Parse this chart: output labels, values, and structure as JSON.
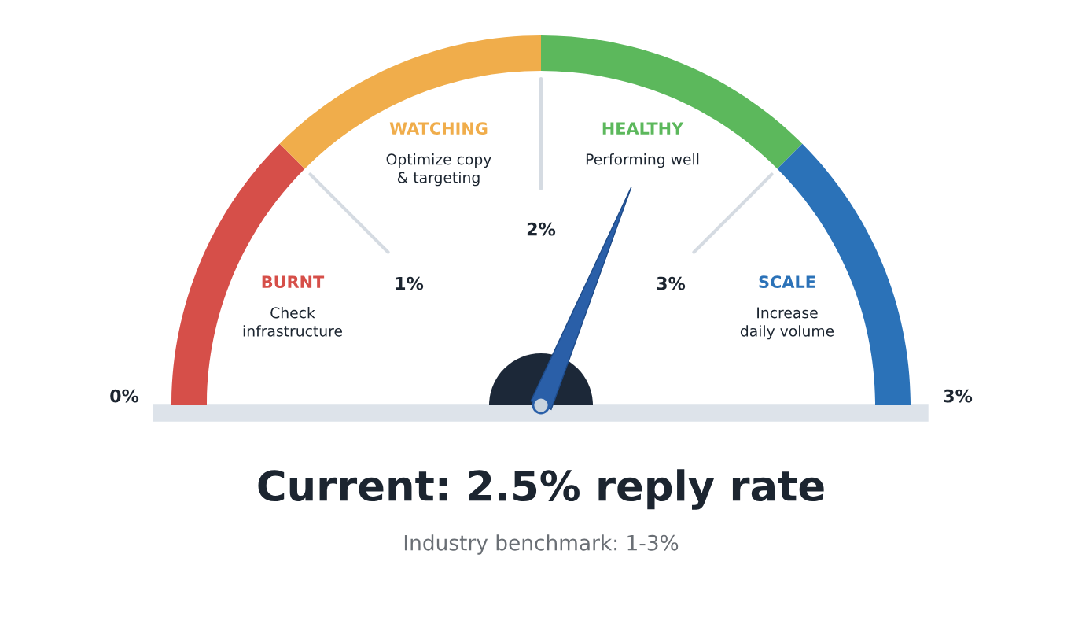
{
  "chart_data": {
    "type": "donut",
    "title": "Current: 2.5% reply rate",
    "subtitle": "Industry benchmark: 1-3%",
    "categories": [
      "BURNT",
      "WATCHING",
      "HEALTHY",
      "SCALE"
    ],
    "values": [
      25,
      25,
      25,
      25
    ],
    "colors": [
      "#d64f49",
      "#f0ad4b",
      "#5cb85c",
      "#2b72b8"
    ],
    "needle": "HEALTHY",
    "annotations": [
      "Check\ninfrastructure",
      "Optimize copy\n& targeting",
      "Performing well",
      "Increase\ndaily volume",
      "0%",
      "1%",
      "2%",
      "3%",
      "3%"
    ]
  }
}
